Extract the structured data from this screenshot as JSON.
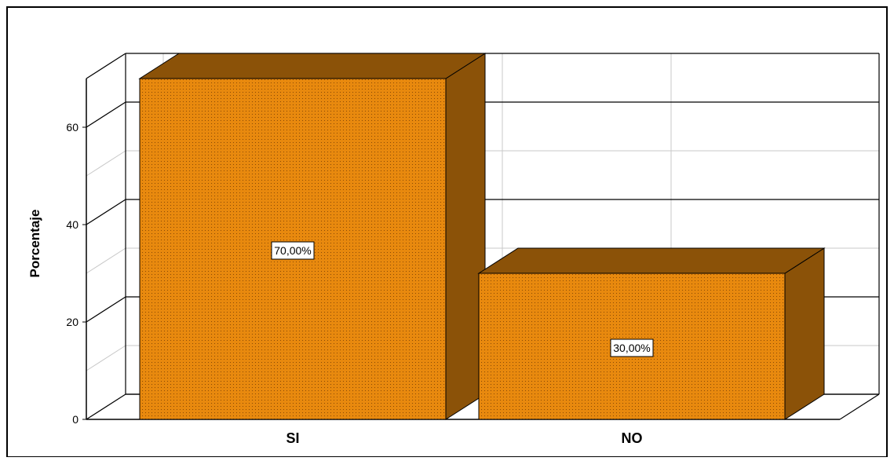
{
  "chart_data": {
    "type": "bar",
    "style": "3d",
    "categories": [
      "SI",
      "NO"
    ],
    "values": [
      70,
      30
    ],
    "data_labels": [
      "70,00%",
      "30,00%"
    ],
    "title": "",
    "xlabel": "",
    "ylabel": "Porcentaje",
    "ylim": [
      0,
      70
    ],
    "yticks": [
      "0",
      "20",
      "40",
      "60"
    ],
    "ytick_values": [
      0,
      20,
      40,
      60
    ],
    "grid": true,
    "bar_color": "#E8890E",
    "bar_side_color": "#8B5208",
    "bar_top_color": "#8B5208"
  }
}
